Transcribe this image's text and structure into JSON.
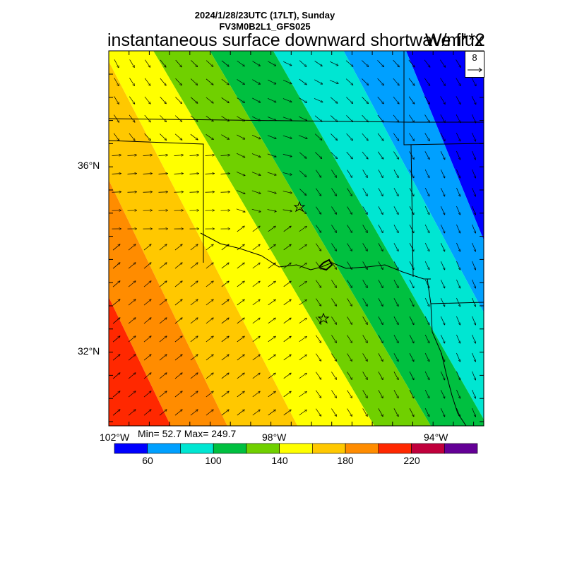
{
  "header": {
    "line1": "2024/1/28/23UTC (17LT), Sunday",
    "line2": "FV3M0B2L1_GFS025",
    "title": "instantaneous surface downward shortwave flux",
    "units": "W/m**2"
  },
  "axes": {
    "lat_labels": [
      "36°N",
      "32°N"
    ],
    "lon_labels": [
      "102°W",
      "98°W",
      "94°W"
    ]
  },
  "stats": {
    "text": "Min= 52.7 Max= 249.7"
  },
  "colorbar": {
    "colors": [
      "#0000ff",
      "#00a0ff",
      "#00e6d2",
      "#00c040",
      "#70d000",
      "#ffff00",
      "#ffc800",
      "#ff8c00",
      "#ff2800",
      "#c0003c",
      "#640096"
    ],
    "labels": [
      "60",
      "100",
      "140",
      "180",
      "220"
    ]
  },
  "reference_vector": {
    "label": "8"
  }
}
